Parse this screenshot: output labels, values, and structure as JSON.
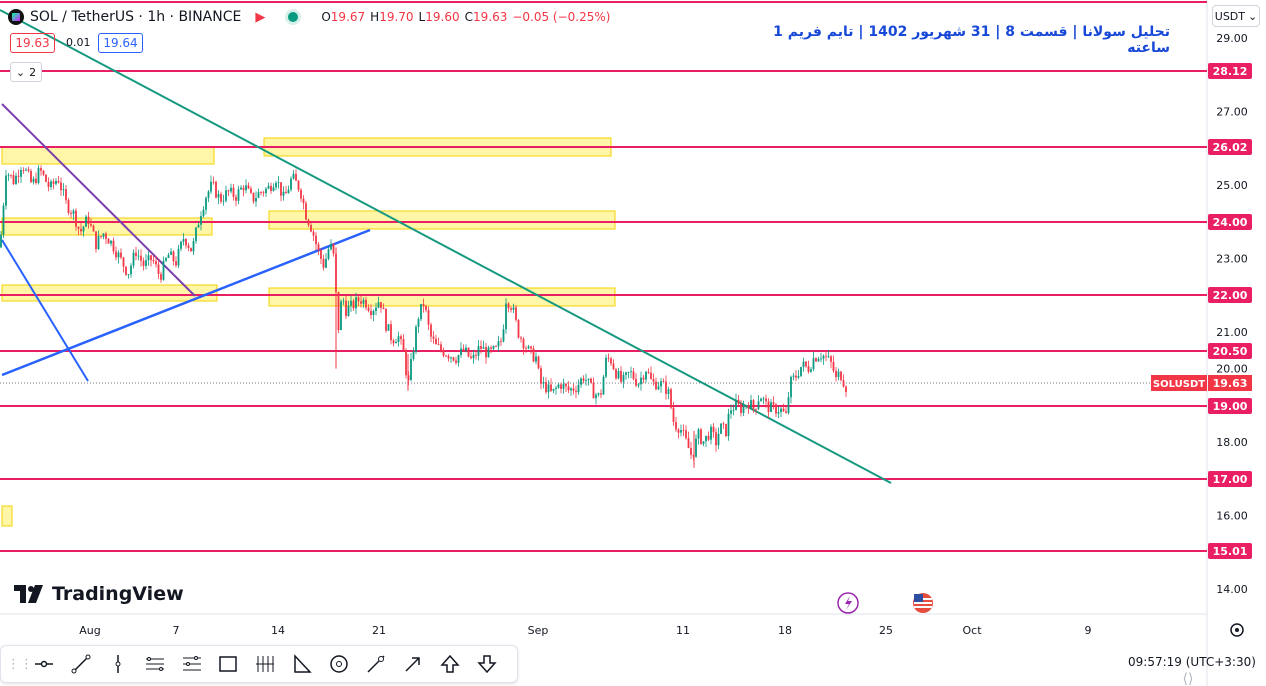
{
  "header": {
    "symbol_title": "SOL / TetherUS · 1h · BINANCE",
    "ohlc": [
      {
        "label": "O",
        "value": "19.67"
      },
      {
        "label": "H",
        "value": "19.70"
      },
      {
        "label": "L",
        "value": "19.60"
      },
      {
        "label": "C",
        "value": "19.63"
      },
      {
        "label": "",
        "value": "−0.05 (−0.25%)"
      }
    ],
    "sell_price": "19.63",
    "spread": "0.01",
    "buy_price": "19.64",
    "indicators_count": "2",
    "currency_button": "USDT",
    "currency_chevron": "chevron-down-icon"
  },
  "title_annotation": "تحلیل سولانا | قسمت 8 | 31 شهریور 1402 | تایم فریم 1 ساعته",
  "branding": {
    "logo_text": "TradingView"
  },
  "status": {
    "time": "09:57:19",
    "timezone": "(UTC+3:30)"
  },
  "drawing_tools": [
    {
      "name": "horizontal-ray-icon"
    },
    {
      "name": "trend-line-icon"
    },
    {
      "name": "vertical-line-icon"
    },
    {
      "name": "parallel-channel-icon"
    },
    {
      "name": "regression-trend-icon"
    },
    {
      "name": "rectangle-icon"
    },
    {
      "name": "fib-retracement-icon"
    },
    {
      "name": "triangle-icon"
    },
    {
      "name": "circle-target-icon"
    },
    {
      "name": "ruler-icon"
    },
    {
      "name": "arrow-icon"
    },
    {
      "name": "arrow-up-icon"
    },
    {
      "name": "arrow-down-icon"
    }
  ],
  "colors": {
    "up_candle": "#089981",
    "down_candle": "#f23645",
    "level_line": "#e91e63",
    "zone_fill": "#ffeb3b",
    "trend_green": "#159980",
    "trend_blue": "#2962ff",
    "trend_purple": "#7b3fb0",
    "current_price": "#f23645"
  },
  "chart_data": {
    "type": "line",
    "symbol": "SOLUSDT",
    "current_price": 19.63,
    "y_ticks": [
      "14.00",
      "16.00",
      "18.00",
      "20.00",
      "21.00",
      "23.00",
      "25.00",
      "27.00",
      "29.00"
    ],
    "x_ticks": [
      "Aug",
      "7",
      "14",
      "21",
      "Sep",
      "11",
      "18",
      "25",
      "Oct",
      "9"
    ],
    "level_labels": [
      "28.12",
      "26.02",
      "24.00",
      "22.00",
      "20.50",
      "19.00",
      "17.00",
      "15.01"
    ],
    "ylim": [
      13.6,
      29.5
    ],
    "price_path": [
      [
        0,
        23.3
      ],
      [
        6,
        25.4
      ],
      [
        14,
        25.1
      ],
      [
        22,
        25.6
      ],
      [
        32,
        25.0
      ],
      [
        40,
        25.4
      ],
      [
        50,
        24.9
      ],
      [
        58,
        25.2
      ],
      [
        66,
        24.5
      ],
      [
        74,
        24.2
      ],
      [
        80,
        23.7
      ],
      [
        88,
        24.1
      ],
      [
        96,
        23.4
      ],
      [
        104,
        23.7
      ],
      [
        112,
        23.4
      ],
      [
        120,
        23.0
      ],
      [
        128,
        22.6
      ],
      [
        136,
        23.2
      ],
      [
        144,
        22.8
      ],
      [
        152,
        23.0
      ],
      [
        160,
        22.5
      ],
      [
        168,
        23.1
      ],
      [
        176,
        22.9
      ],
      [
        184,
        23.6
      ],
      [
        192,
        23.2
      ],
      [
        200,
        24.2
      ],
      [
        206,
        24.7
      ],
      [
        212,
        25.0
      ],
      [
        220,
        24.6
      ],
      [
        228,
        24.8
      ],
      [
        236,
        24.7
      ],
      [
        244,
        25.0
      ],
      [
        252,
        24.6
      ],
      [
        260,
        24.8
      ],
      [
        268,
        24.9
      ],
      [
        276,
        25.2
      ],
      [
        284,
        24.6
      ],
      [
        292,
        25.2
      ],
      [
        300,
        24.9
      ],
      [
        306,
        24.2
      ],
      [
        312,
        23.8
      ],
      [
        318,
        23.2
      ],
      [
        324,
        22.8
      ],
      [
        330,
        23.4
      ],
      [
        334,
        23.0
      ],
      [
        338,
        21.0
      ],
      [
        342,
        22.0
      ],
      [
        346,
        21.6
      ],
      [
        352,
        21.7
      ],
      [
        360,
        21.9
      ],
      [
        366,
        21.8
      ],
      [
        372,
        21.6
      ],
      [
        380,
        21.9
      ],
      [
        386,
        21.2
      ],
      [
        392,
        20.8
      ],
      [
        398,
        20.9
      ],
      [
        404,
        20.4
      ],
      [
        408,
        19.5
      ],
      [
        412,
        20.3
      ],
      [
        418,
        21.4
      ],
      [
        424,
        21.8
      ],
      [
        430,
        20.9
      ],
      [
        436,
        20.6
      ],
      [
        442,
        20.5
      ],
      [
        448,
        20.4
      ],
      [
        456,
        20.3
      ],
      [
        464,
        20.5
      ],
      [
        472,
        20.2
      ],
      [
        480,
        20.6
      ],
      [
        488,
        20.4
      ],
      [
        496,
        20.5
      ],
      [
        502,
        20.8
      ],
      [
        506,
        21.9
      ],
      [
        512,
        21.7
      ],
      [
        518,
        21.0
      ],
      [
        524,
        20.7
      ],
      [
        530,
        20.4
      ],
      [
        536,
        20.3
      ],
      [
        540,
        19.6
      ],
      [
        546,
        19.5
      ],
      [
        552,
        19.3
      ],
      [
        560,
        19.6
      ],
      [
        568,
        19.4
      ],
      [
        576,
        19.5
      ],
      [
        584,
        19.8
      ],
      [
        592,
        19.4
      ],
      [
        600,
        19.2
      ],
      [
        606,
        20.2
      ],
      [
        610,
        20.3
      ],
      [
        616,
        19.9
      ],
      [
        622,
        19.6
      ],
      [
        630,
        19.9
      ],
      [
        638,
        19.6
      ],
      [
        646,
        20.0
      ],
      [
        652,
        19.6
      ],
      [
        660,
        19.6
      ],
      [
        668,
        19.4
      ],
      [
        674,
        18.5
      ],
      [
        680,
        18.4
      ],
      [
        686,
        18.0
      ],
      [
        692,
        17.6
      ],
      [
        698,
        18.2
      ],
      [
        704,
        18.0
      ],
      [
        710,
        18.3
      ],
      [
        716,
        18.0
      ],
      [
        720,
        18.4
      ],
      [
        726,
        18.3
      ],
      [
        730,
        18.9
      ],
      [
        736,
        19.0
      ],
      [
        742,
        18.9
      ],
      [
        748,
        19.1
      ],
      [
        754,
        18.9
      ],
      [
        760,
        19.3
      ],
      [
        766,
        19.0
      ],
      [
        772,
        18.9
      ],
      [
        780,
        18.9
      ],
      [
        786,
        18.7
      ],
      [
        790,
        19.6
      ],
      [
        796,
        19.8
      ],
      [
        802,
        20.1
      ],
      [
        808,
        20.0
      ],
      [
        814,
        20.3
      ],
      [
        820,
        20.4
      ],
      [
        826,
        20.3
      ],
      [
        832,
        20.1
      ],
      [
        836,
        19.7
      ],
      [
        840,
        19.9
      ],
      [
        846,
        19.5
      ],
      [
        850,
        19.63
      ]
    ]
  }
}
